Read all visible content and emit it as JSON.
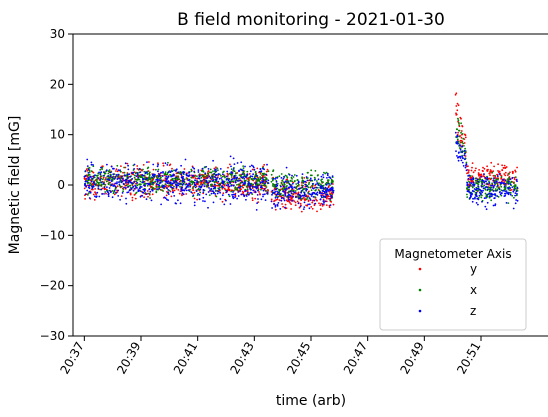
{
  "chart_data": {
    "type": "scatter",
    "title": "B field monitoring - 2021-01-30",
    "xlabel": "time (arb)",
    "ylabel": "Magnetic field [mG]",
    "ylim": [
      -30,
      30
    ],
    "xlim": [
      "20:36:36",
      "20:53:24"
    ],
    "x_ticks": [
      "20:37",
      "20:39",
      "20:41",
      "20:43",
      "20:45",
      "20:47",
      "20:49",
      "20:51"
    ],
    "y_ticks": [
      -30,
      -20,
      -10,
      0,
      10,
      20,
      30
    ],
    "grid": false,
    "legend": {
      "title": "Magnetometer Axis",
      "placement": "lower-right"
    },
    "series": [
      {
        "name": "y",
        "color": "#ff0000",
        "segments": [
          {
            "start": "20:37:00",
            "end": "20:43:30",
            "mean": 0.5,
            "spread": 2.2
          },
          {
            "start": "20:43:36",
            "end": "20:45:48",
            "mean": -2.0,
            "spread": 2.0
          },
          {
            "start": "20:50:06",
            "end": "20:50:30",
            "mean": 8.0,
            "spread": 3.0,
            "spike": 20
          },
          {
            "start": "20:50:30",
            "end": "20:52:18",
            "mean": 1.5,
            "spread": 1.8
          }
        ]
      },
      {
        "name": "x",
        "color": "#008000",
        "segments": [
          {
            "start": "20:37:00",
            "end": "20:43:30",
            "mean": 1.0,
            "spread": 1.8
          },
          {
            "start": "20:43:36",
            "end": "20:45:48",
            "mean": 0.0,
            "spread": 2.0
          },
          {
            "start": "20:50:06",
            "end": "20:50:30",
            "mean": 7.0,
            "spread": 3.0,
            "spike": 15
          },
          {
            "start": "20:50:30",
            "end": "20:52:18",
            "mean": -0.5,
            "spread": 1.8
          }
        ]
      },
      {
        "name": "z",
        "color": "#0000ff",
        "segments": [
          {
            "start": "20:37:00",
            "end": "20:43:30",
            "mean": 0.5,
            "spread": 2.6
          },
          {
            "start": "20:43:36",
            "end": "20:45:48",
            "mean": -1.0,
            "spread": 2.4
          },
          {
            "start": "20:50:06",
            "end": "20:50:30",
            "mean": 5.0,
            "spread": 3.2,
            "spike": 11
          },
          {
            "start": "20:50:30",
            "end": "20:52:18",
            "mean": -1.0,
            "spread": 2.2
          }
        ]
      }
    ]
  }
}
